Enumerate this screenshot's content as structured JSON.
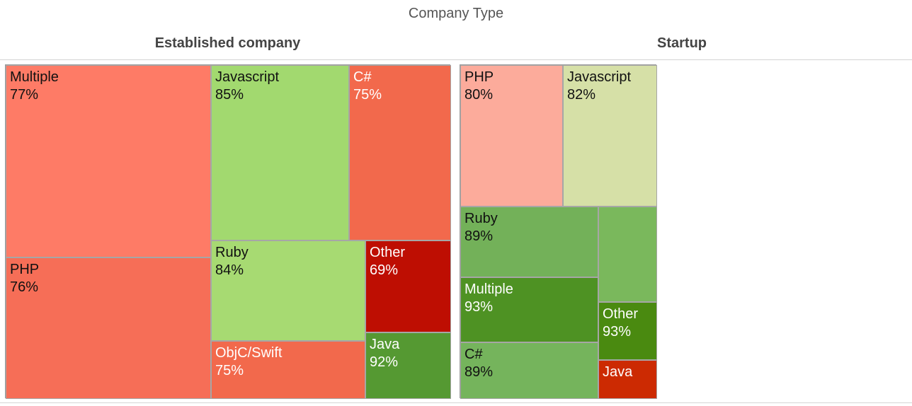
{
  "chart_data": {
    "type": "treemap",
    "title": "Company Type",
    "panels": [
      {
        "name": "Established company",
        "tiles": [
          {
            "label": "Multiple",
            "value": "77%",
            "color": "#fe7b66",
            "text_color": "#111111"
          },
          {
            "label": "PHP",
            "value": "76%",
            "color": "#f66e57",
            "text_color": "#111111"
          },
          {
            "label": "Javascript",
            "value": "85%",
            "color": "#a2d96f",
            "text_color": "#111111"
          },
          {
            "label": "C#",
            "value": "75%",
            "color": "#f2694c",
            "text_color": "#ffffff"
          },
          {
            "label": "Ruby",
            "value": "84%",
            "color": "#a7da72",
            "text_color": "#111111"
          },
          {
            "label": "Other",
            "value": "69%",
            "color": "#be0e02",
            "text_color": "#ffffff"
          },
          {
            "label": "ObjC/Swift",
            "value": "75%",
            "color": "#f2694c",
            "text_color": "#ffffff"
          },
          {
            "label": "Java",
            "value": "92%",
            "color": "#559932",
            "text_color": "#ffffff"
          }
        ]
      },
      {
        "name": "Startup",
        "tiles": [
          {
            "label": "PHP",
            "value": "80%",
            "color": "#fcab9b",
            "text_color": "#111111"
          },
          {
            "label": "Javascript",
            "value": "82%",
            "color": "#d6e0a7",
            "text_color": "#111111"
          },
          {
            "label": "Ruby",
            "value": "89%",
            "color": "#73b159",
            "text_color": "#111111"
          },
          {
            "label": "",
            "value": "",
            "color": "#7ab85c",
            "text_color": "#111111"
          },
          {
            "label": "Multiple",
            "value": "93%",
            "color": "#4e9223",
            "text_color": "#ffffff"
          },
          {
            "label": "Other",
            "value": "93%",
            "color": "#4a8a10",
            "text_color": "#ffffff"
          },
          {
            "label": "C#",
            "value": "89%",
            "color": "#75b45c",
            "text_color": "#111111"
          },
          {
            "label": "Java",
            "value": "",
            "color": "#cc2a02",
            "text_color": "#ffffff"
          }
        ]
      }
    ]
  }
}
